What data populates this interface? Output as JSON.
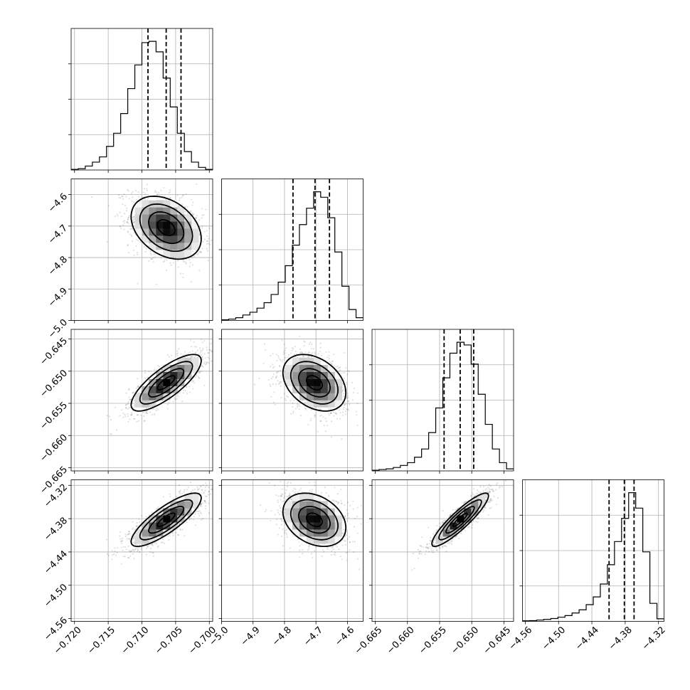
{
  "chart_data": {
    "type": "corner",
    "grid": true,
    "parameters": [
      {
        "axis_range": [
          -0.7205,
          -0.6995
        ],
        "ticks": [
          -0.72,
          -0.715,
          -0.71,
          -0.705,
          -0.7
        ],
        "tick_labels": [
          "−0.720",
          "−0.715",
          "−0.710",
          "−0.705",
          "−0.700"
        ],
        "quantiles": [
          -0.7091,
          -0.7064,
          -0.7042
        ],
        "histogram": {
          "edges": [
            -0.7205,
            -0.71945,
            -0.7184,
            -0.71735,
            -0.7163,
            -0.71525,
            -0.7142,
            -0.71315,
            -0.7121,
            -0.71105,
            -0.71,
            -0.70895,
            -0.7079,
            -0.70685,
            -0.7058,
            -0.70475,
            -0.7037,
            -0.70265,
            -0.7016,
            -0.70055,
            -0.6995
          ],
          "counts": [
            0.5,
            1,
            3,
            6,
            10,
            18,
            28,
            43,
            62,
            80,
            97,
            98,
            90,
            70,
            48,
            28,
            14,
            6,
            2,
            0.5
          ]
        }
      },
      {
        "axis_range": [
          -5.0,
          -4.55
        ],
        "ticks": [
          -5.0,
          -4.9,
          -4.8,
          -4.7,
          -4.6
        ],
        "tick_labels": [
          "−5.0",
          "−4.9",
          "−4.8",
          "−4.7",
          "−4.6"
        ],
        "quantiles": [
          -4.773,
          -4.703,
          -4.657
        ],
        "histogram": {
          "edges": [
            -5.0,
            -4.9775,
            -4.955,
            -4.9325,
            -4.91,
            -4.8875,
            -4.865,
            -4.8425,
            -4.82,
            -4.7975,
            -4.775,
            -4.7525,
            -4.73,
            -4.7075,
            -4.685,
            -4.6625,
            -4.64,
            -4.6175,
            -4.595,
            -4.5725,
            -4.55
          ],
          "counts": [
            0.5,
            1,
            2,
            4,
            6,
            9,
            13,
            19,
            28,
            40,
            55,
            70,
            82,
            94,
            90,
            75,
            50,
            25,
            8,
            2
          ]
        }
      },
      {
        "axis_range": [
          -0.6655,
          -0.6435
        ],
        "ticks": [
          -0.665,
          -0.66,
          -0.655,
          -0.65,
          -0.645
        ],
        "tick_labels": [
          "−0.665",
          "−0.660",
          "−0.655",
          "−0.650",
          "−0.645"
        ],
        "quantiles": [
          -0.6543,
          -0.6518,
          -0.6497
        ],
        "histogram": {
          "edges": [
            -0.6655,
            -0.6644,
            -0.6633,
            -0.6622,
            -0.6611,
            -0.66,
            -0.6589,
            -0.6578,
            -0.6567,
            -0.6556,
            -0.6545,
            -0.6534,
            -0.6523,
            -0.6512,
            -0.6501,
            -0.649,
            -0.6479,
            -0.6468,
            -0.6457,
            -0.6446,
            -0.6435
          ],
          "counts": [
            0.5,
            1,
            1.5,
            2.5,
            4,
            6,
            10,
            16,
            28,
            46,
            68,
            86,
            94,
            92,
            78,
            56,
            34,
            16,
            6,
            1.5
          ]
        }
      },
      {
        "axis_range": [
          -4.565,
          -4.31
        ],
        "ticks": [
          -4.56,
          -4.5,
          -4.44,
          -4.38,
          -4.32
        ],
        "tick_labels": [
          "−4.56",
          "−4.50",
          "−4.44",
          "−4.38",
          "−4.32"
        ],
        "quantiles": [
          -4.409,
          -4.3815,
          -4.364
        ],
        "histogram": {
          "edges": [
            -4.565,
            -4.55225,
            -4.5395,
            -4.52675,
            -4.514,
            -4.50125,
            -4.4885,
            -4.47575,
            -4.463,
            -4.45025,
            -4.4375,
            -4.42475,
            -4.412,
            -4.39925,
            -4.3865,
            -4.37375,
            -4.361,
            -4.34825,
            -4.3355,
            -4.32275,
            -4.31
          ],
          "counts": [
            0.4,
            0.6,
            1,
            1.5,
            2.2,
            3.2,
            4.5,
            6.5,
            9,
            13,
            19,
            29,
            44,
            62,
            80,
            100,
            88,
            54,
            14,
            2
          ]
        }
      }
    ],
    "pairs": [
      {
        "row": 1,
        "col": 0,
        "center": [
          -0.7064,
          -4.705
        ],
        "sigma": [
          0.0026,
          0.05
        ],
        "correlation": -0.35,
        "contours_sigma": [
          0.5,
          1.0,
          1.5,
          2.0
        ]
      },
      {
        "row": 2,
        "col": 0,
        "center": [
          -0.7064,
          -0.6518
        ],
        "sigma": [
          0.0026,
          0.0022
        ],
        "correlation": 0.78,
        "contours_sigma": [
          0.5,
          1.0,
          1.5,
          2.0
        ]
      },
      {
        "row": 2,
        "col": 1,
        "center": [
          -4.705,
          -0.6518
        ],
        "sigma": [
          0.05,
          0.0022
        ],
        "correlation": -0.35,
        "contours_sigma": [
          0.5,
          1.0,
          1.5,
          2.0
        ]
      },
      {
        "row": 3,
        "col": 0,
        "center": [
          -0.7064,
          -4.382
        ],
        "sigma": [
          0.0026,
          0.024
        ],
        "correlation": 0.82,
        "contours_sigma": [
          0.5,
          1.0,
          1.5,
          2.0
        ]
      },
      {
        "row": 3,
        "col": 1,
        "center": [
          -4.705,
          -4.382
        ],
        "sigma": [
          0.05,
          0.024
        ],
        "correlation": -0.3,
        "contours_sigma": [
          0.5,
          1.0,
          1.5,
          2.0
        ]
      },
      {
        "row": 3,
        "col": 2,
        "center": [
          -0.6518,
          -4.382
        ],
        "sigma": [
          0.0022,
          0.024
        ],
        "correlation": 0.9,
        "contours_sigma": [
          0.5,
          1.0,
          1.5,
          2.0
        ]
      }
    ]
  }
}
